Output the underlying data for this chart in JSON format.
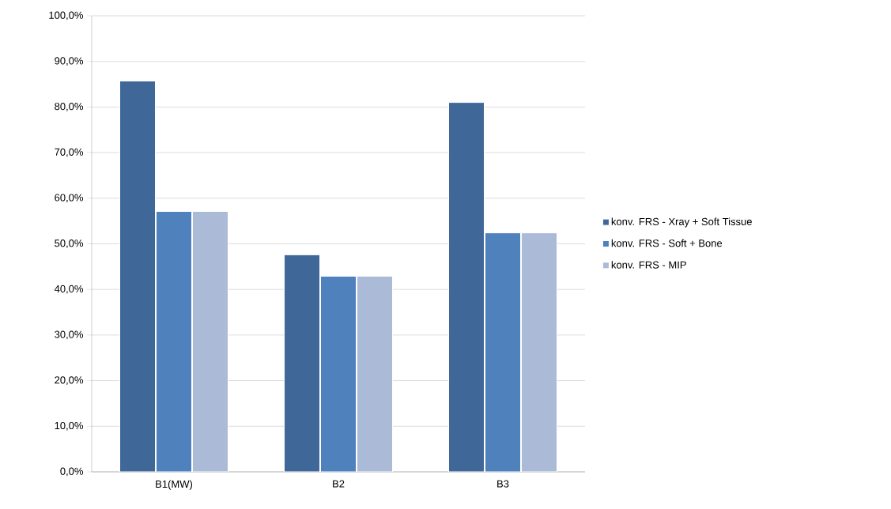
{
  "chart_data": {
    "type": "bar",
    "categories": [
      "B1(MW)",
      "B2",
      "B3"
    ],
    "series": [
      {
        "name": "konv. FRS - Xray + Soft Tissue",
        "color": "#3f6899",
        "values": [
          85.7,
          47.6,
          81.0
        ]
      },
      {
        "name": "konv. FRS - Soft + Bone",
        "color": "#4f81bd",
        "values": [
          57.1,
          42.9,
          52.4
        ]
      },
      {
        "name": "konv. FRS - MIP",
        "color": "#aabad7",
        "values": [
          57.1,
          42.9,
          52.4
        ]
      }
    ],
    "ylim": [
      0,
      100
    ],
    "yticks": [
      {
        "value": 0,
        "label": "0,0%"
      },
      {
        "value": 10,
        "label": "10,0%"
      },
      {
        "value": 20,
        "label": "20,0%"
      },
      {
        "value": 30,
        "label": "30,0%"
      },
      {
        "value": 40,
        "label": "40,0%"
      },
      {
        "value": 50,
        "label": "50,0%"
      },
      {
        "value": 60,
        "label": "60,0%"
      },
      {
        "value": 70,
        "label": "70,0%"
      },
      {
        "value": 80,
        "label": "80,0%"
      },
      {
        "value": 90,
        "label": "90,0%"
      },
      {
        "value": 100,
        "label": "100,0%"
      }
    ],
    "grid": "y",
    "legend": "right"
  }
}
